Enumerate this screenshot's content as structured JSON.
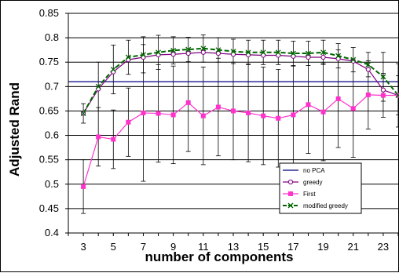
{
  "chart_data": {
    "type": "line",
    "title": "",
    "xlabel": "number of components",
    "ylabel": "Adjusted Rand",
    "xlim": [
      2,
      24
    ],
    "ylim": [
      0.4,
      0.85
    ],
    "y_ticks": [
      0.4,
      0.45,
      0.5,
      0.55,
      0.6,
      0.65,
      0.7,
      0.75,
      0.8,
      0.85
    ],
    "y_tick_labels": [
      "0.4",
      "0.45",
      "0.5",
      "0.55",
      "0.6",
      "0.65",
      "0.7",
      "0.75",
      "0.8",
      "0.85"
    ],
    "x_ticks": [
      3,
      5,
      7,
      9,
      11,
      13,
      15,
      17,
      19,
      21,
      23
    ],
    "x_tick_labels": [
      "3",
      "5",
      "7",
      "9",
      "11",
      "13",
      "15",
      "17",
      "19",
      "21",
      "23"
    ],
    "grid": "horizontal",
    "legend_position": "bottom-right",
    "series": [
      {
        "name": "no PCA",
        "color": "#000080",
        "style": "solid",
        "marker": "none",
        "x": [
          2,
          24
        ],
        "y": [
          0.71,
          0.71
        ]
      },
      {
        "name": "greedy",
        "color": "#800080",
        "style": "solid",
        "marker": "circle",
        "x": [
          3,
          4,
          5,
          6,
          7,
          8,
          9,
          10,
          11,
          12,
          13,
          14,
          15,
          16,
          17,
          18,
          19,
          20,
          21,
          22,
          23,
          24
        ],
        "y": [
          0.645,
          0.695,
          0.73,
          0.755,
          0.76,
          0.765,
          0.766,
          0.768,
          0.77,
          0.768,
          0.766,
          0.765,
          0.764,
          0.764,
          0.762,
          0.76,
          0.76,
          0.757,
          0.752,
          0.735,
          0.693,
          0.682
        ]
      },
      {
        "name": "First",
        "color": "#ff33cc",
        "style": "solid",
        "marker": "square",
        "x": [
          3,
          4,
          5,
          6,
          7,
          8,
          9,
          10,
          11,
          12,
          13,
          14,
          15,
          16,
          17,
          18,
          19,
          20,
          21,
          22,
          23,
          24
        ],
        "y": [
          0.495,
          0.597,
          0.592,
          0.627,
          0.646,
          0.645,
          0.642,
          0.667,
          0.64,
          0.658,
          0.65,
          0.646,
          0.64,
          0.635,
          0.642,
          0.663,
          0.648,
          0.675,
          0.655,
          0.683,
          0.682,
          0.682
        ],
        "error": [
          0.055,
          0.06,
          0.06,
          0.07,
          0.14,
          0.1,
          0.1,
          0.1,
          0.1,
          0.1,
          0.1,
          0.1,
          0.1,
          0.1,
          0.1,
          0.1,
          0.1,
          0.1,
          0.1,
          0.07,
          0.045,
          0.04
        ]
      },
      {
        "name": "modified greedy",
        "color": "#006600",
        "style": "dashed",
        "marker": "x",
        "x": [
          3,
          4,
          5,
          6,
          7,
          8,
          9,
          10,
          11,
          12,
          13,
          14,
          15,
          16,
          17,
          18,
          19,
          20,
          21,
          22,
          23,
          24
        ],
        "y": [
          0.645,
          0.7,
          0.735,
          0.76,
          0.765,
          0.77,
          0.774,
          0.776,
          0.778,
          0.775,
          0.772,
          0.77,
          0.77,
          0.77,
          0.768,
          0.768,
          0.77,
          0.763,
          0.755,
          0.745,
          0.72,
          0.682
        ],
        "error": [
          0.02,
          0.05,
          0.05,
          0.035,
          0.037,
          0.035,
          0.028,
          0.025,
          0.028,
          0.025,
          0.025,
          0.025,
          0.025,
          0.025,
          0.025,
          0.025,
          0.025,
          0.025,
          0.025,
          0.025,
          0.05,
          0.065
        ]
      }
    ]
  }
}
